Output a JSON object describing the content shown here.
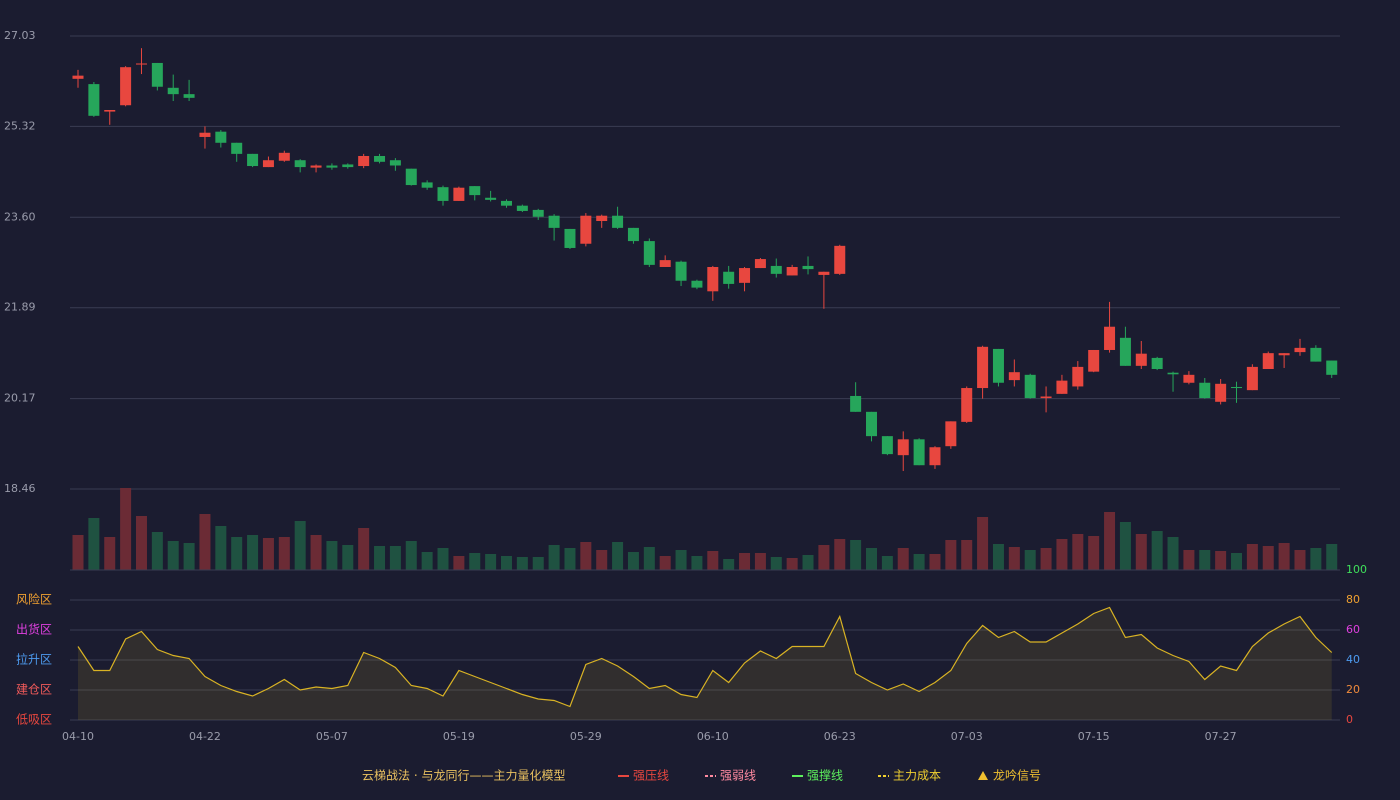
{
  "chart_data": [
    {
      "type": "candlestick",
      "categories": [
        "04-10",
        null,
        null,
        null,
        null,
        null,
        null,
        null,
        "04-22",
        null,
        null,
        null,
        null,
        null,
        null,
        null,
        "05-07",
        null,
        null,
        null,
        null,
        null,
        null,
        null,
        "05-19",
        null,
        null,
        null,
        null,
        null,
        null,
        null,
        "05-29",
        null,
        null,
        null,
        null,
        null,
        null,
        null,
        "06-10",
        null,
        null,
        null,
        null,
        null,
        null,
        null,
        "06-23",
        null,
        null,
        null,
        null,
        null,
        null,
        null,
        "07-03",
        null,
        null,
        null,
        null,
        null,
        null,
        null,
        "07-15",
        null,
        null,
        null,
        null,
        null,
        null,
        null,
        "07-27",
        null,
        null,
        null,
        null,
        null,
        null,
        null
      ],
      "open": [
        26.22,
        26.12,
        25.6,
        25.72,
        26.49,
        26.52,
        26.05,
        25.93,
        25.12,
        25.22,
        25.01,
        24.8,
        24.55,
        24.67,
        24.68,
        24.54,
        24.58,
        24.6,
        24.57,
        24.76,
        24.68,
        24.52,
        24.26,
        24.17,
        23.91,
        24.19,
        23.97,
        23.91,
        23.82,
        23.74,
        23.63,
        23.38,
        23.1,
        23.53,
        23.63,
        23.4,
        23.15,
        22.66,
        22.76,
        22.4,
        22.2,
        22.57,
        22.36,
        22.64,
        22.68,
        22.5,
        22.68,
        22.51,
        22.53,
        20.22,
        19.92,
        19.46,
        19.1,
        19.4,
        18.91,
        19.27,
        19.73,
        20.37,
        21.11,
        20.52,
        20.62,
        20.18,
        20.26,
        20.4,
        20.68,
        21.09,
        21.32,
        20.79,
        20.94,
        20.66,
        20.47,
        20.47,
        20.11,
        20.39,
        20.33,
        20.73,
        20.99,
        21.05,
        21.13,
        20.89
      ],
      "high": [
        26.39,
        26.16,
        25.63,
        26.46,
        26.8,
        26.52,
        26.3,
        26.2,
        25.32,
        25.25,
        25.01,
        24.8,
        24.75,
        24.86,
        24.7,
        24.6,
        24.62,
        24.62,
        24.8,
        24.8,
        24.72,
        24.52,
        24.3,
        24.2,
        24.18,
        24.19,
        24.1,
        23.94,
        23.84,
        23.76,
        23.66,
        23.38,
        23.68,
        23.65,
        23.8,
        23.4,
        23.2,
        22.88,
        22.78,
        22.42,
        22.68,
        22.68,
        22.66,
        22.83,
        22.82,
        22.7,
        22.86,
        22.57,
        23.08,
        20.48,
        19.92,
        19.46,
        19.55,
        19.42,
        19.27,
        19.74,
        20.4,
        21.17,
        21.11,
        20.91,
        20.64,
        20.4,
        20.62,
        20.88,
        21.09,
        22.0,
        21.53,
        21.26,
        20.96,
        20.68,
        20.69,
        20.56,
        20.54,
        20.49,
        20.82,
        21.06,
        21.03,
        21.3,
        21.18,
        20.89
      ],
      "low": [
        26.05,
        25.5,
        25.35,
        25.7,
        26.31,
        26.0,
        25.8,
        25.8,
        24.9,
        24.92,
        24.65,
        24.55,
        24.55,
        24.65,
        24.45,
        24.45,
        24.5,
        24.52,
        24.53,
        24.62,
        24.48,
        24.2,
        24.12,
        23.82,
        23.91,
        23.92,
        23.9,
        23.78,
        23.7,
        23.55,
        23.16,
        23.0,
        23.05,
        23.4,
        23.38,
        23.1,
        22.66,
        22.66,
        22.3,
        22.24,
        22.02,
        22.25,
        22.2,
        22.64,
        22.46,
        22.5,
        22.52,
        21.87,
        22.51,
        19.92,
        19.36,
        19.1,
        18.8,
        18.91,
        18.84,
        19.22,
        19.71,
        20.17,
        20.4,
        20.4,
        20.17,
        19.91,
        20.26,
        20.34,
        20.67,
        21.04,
        20.79,
        20.73,
        20.71,
        20.3,
        20.44,
        20.17,
        20.06,
        20.09,
        20.33,
        20.73,
        20.75,
        20.98,
        20.87,
        20.56
      ],
      "close": [
        26.28,
        25.52,
        25.63,
        26.44,
        26.51,
        26.07,
        25.93,
        25.86,
        25.2,
        25.01,
        24.8,
        24.57,
        24.68,
        24.82,
        24.55,
        24.58,
        24.54,
        24.55,
        24.76,
        24.65,
        24.58,
        24.21,
        24.16,
        23.91,
        24.16,
        24.02,
        23.93,
        23.82,
        23.72,
        23.61,
        23.4,
        23.02,
        23.63,
        23.63,
        23.4,
        23.15,
        22.7,
        22.79,
        22.4,
        22.27,
        22.66,
        22.34,
        22.64,
        22.81,
        22.53,
        22.66,
        22.62,
        22.57,
        23.06,
        19.92,
        19.46,
        19.12,
        19.4,
        18.91,
        19.25,
        19.74,
        20.37,
        21.15,
        20.47,
        20.67,
        20.18,
        20.21,
        20.51,
        20.77,
        21.09,
        21.53,
        20.79,
        21.02,
        20.73,
        20.63,
        20.62,
        20.18,
        20.45,
        20.37,
        20.77,
        21.03,
        21.03,
        21.13,
        20.87,
        20.62
      ],
      "up_color": "#e8473f",
      "down_color": "#26a65b",
      "ylim": [
        18.46,
        27.03
      ],
      "yticks": [
        27.03,
        25.32,
        {
          "value": 23.6,
          "label": "23.60"
        },
        21.89,
        20.17,
        18.46
      ],
      "grid": true
    },
    {
      "type": "bar",
      "values": [
        35,
        52,
        33,
        82,
        54,
        38,
        29,
        27,
        56,
        44,
        33,
        35,
        32,
        33,
        49,
        35,
        29,
        25,
        42,
        24,
        24,
        29,
        18,
        22,
        14,
        17,
        16,
        14,
        13,
        13,
        25,
        22,
        28,
        20,
        28,
        18,
        23,
        14,
        20,
        14,
        19,
        11,
        17,
        17,
        13,
        12,
        15,
        25,
        31,
        30,
        22,
        14,
        22,
        16,
        16,
        30,
        30,
        53,
        26,
        23,
        20,
        22,
        31,
        36,
        34,
        58,
        48,
        36,
        39,
        33,
        20,
        20,
        19,
        17,
        26,
        24,
        27,
        20,
        22,
        26
      ],
      "up_color": "#6b2b35",
      "down_color": "#1f5241"
    },
    {
      "type": "line",
      "values": [
        49,
        33,
        33,
        54,
        59,
        47,
        43,
        41,
        29,
        23,
        19,
        16,
        21,
        27,
        20,
        22,
        21,
        23,
        45,
        41,
        35,
        23,
        21,
        16,
        33,
        29,
        25,
        21,
        17,
        14,
        13,
        9,
        37,
        41,
        36,
        29,
        21,
        23,
        17,
        15,
        33,
        25,
        38,
        46,
        41,
        49,
        49,
        49,
        69,
        31,
        25,
        20,
        24,
        19,
        25,
        33,
        51,
        63,
        55,
        59,
        52,
        52,
        58,
        64,
        71,
        75,
        55,
        57,
        48,
        43,
        39,
        27,
        36,
        33,
        49,
        58,
        64,
        69,
        55,
        45
      ],
      "color": "#d9b324",
      "ylim": [
        0,
        100
      ],
      "yticks": [
        0,
        20,
        40,
        60,
        80,
        100
      ],
      "ytick_colors": [
        "#e8473f",
        "#f08a3c",
        "#4d9bf0",
        "#e040e0",
        "#f0a030",
        "#3ee05a"
      ],
      "zones": [
        {
          "label": "风险区",
          "value": 80,
          "color": "#f0a030"
        },
        {
          "label": "出货区",
          "value": 60,
          "color": "#e040e0"
        },
        {
          "label": "拉升区",
          "value": 40,
          "color": "#4d9bf0"
        },
        {
          "label": "建仓区",
          "value": 20,
          "color": "#f05a5a"
        },
        {
          "label": "低吸区",
          "value": 0,
          "color": "#e8473f"
        }
      ],
      "legend_title": "云梯战法 · 与龙同行——主力量化模型",
      "legend": [
        {
          "name": "强压线",
          "color": "#e8473f",
          "style": "solid"
        },
        {
          "name": "强弱线",
          "color": "#ff8aa0",
          "style": "dashed"
        },
        {
          "name": "强撑线",
          "color": "#5df05d",
          "style": "solid"
        },
        {
          "name": "主力成本",
          "color": "#f0d030",
          "style": "dashed"
        },
        {
          "name": "龙吟信号",
          "color": "#f0c030",
          "style": "triangle"
        }
      ]
    }
  ]
}
